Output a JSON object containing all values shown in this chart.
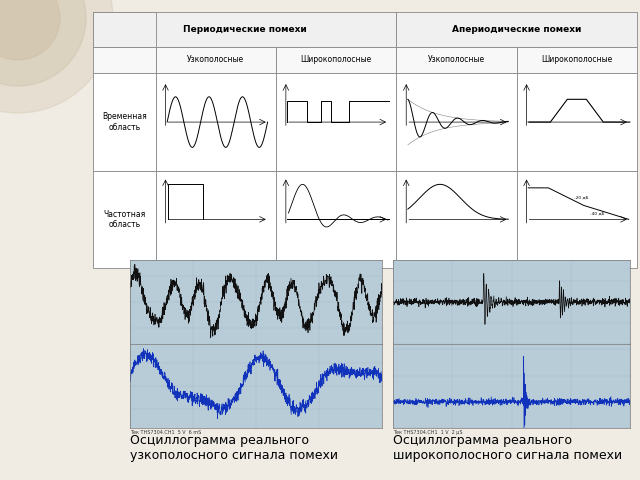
{
  "bg_color": "#f0ece4",
  "bg_circle_color": "#c8b89a",
  "header1_text": "Периодические помехи",
  "header2_text": "Апериодические помехи",
  "col_headers": [
    "Узкополосные",
    "Широкополосные",
    "Узкополосные",
    "Широкополосные"
  ],
  "row_header_top": "Временная\nобласть",
  "row_header_bot": "Частотная\nобласть",
  "caption_left": "Осциллограмма реального\nузкополосного сигнала помехи",
  "caption_right": "Осциллограмма реального\nширокополосного сигнала помехи",
  "osc_bg": "#b8ccd8",
  "osc_grid_color": "#9ab0c0",
  "osc_black_signal": "#111111",
  "osc_blue_signal": "#1133bb",
  "caption_fontsize": 9,
  "table_header_fontsize": 6.5,
  "col_header_fontsize": 5.5,
  "row_header_fontsize": 5.5
}
